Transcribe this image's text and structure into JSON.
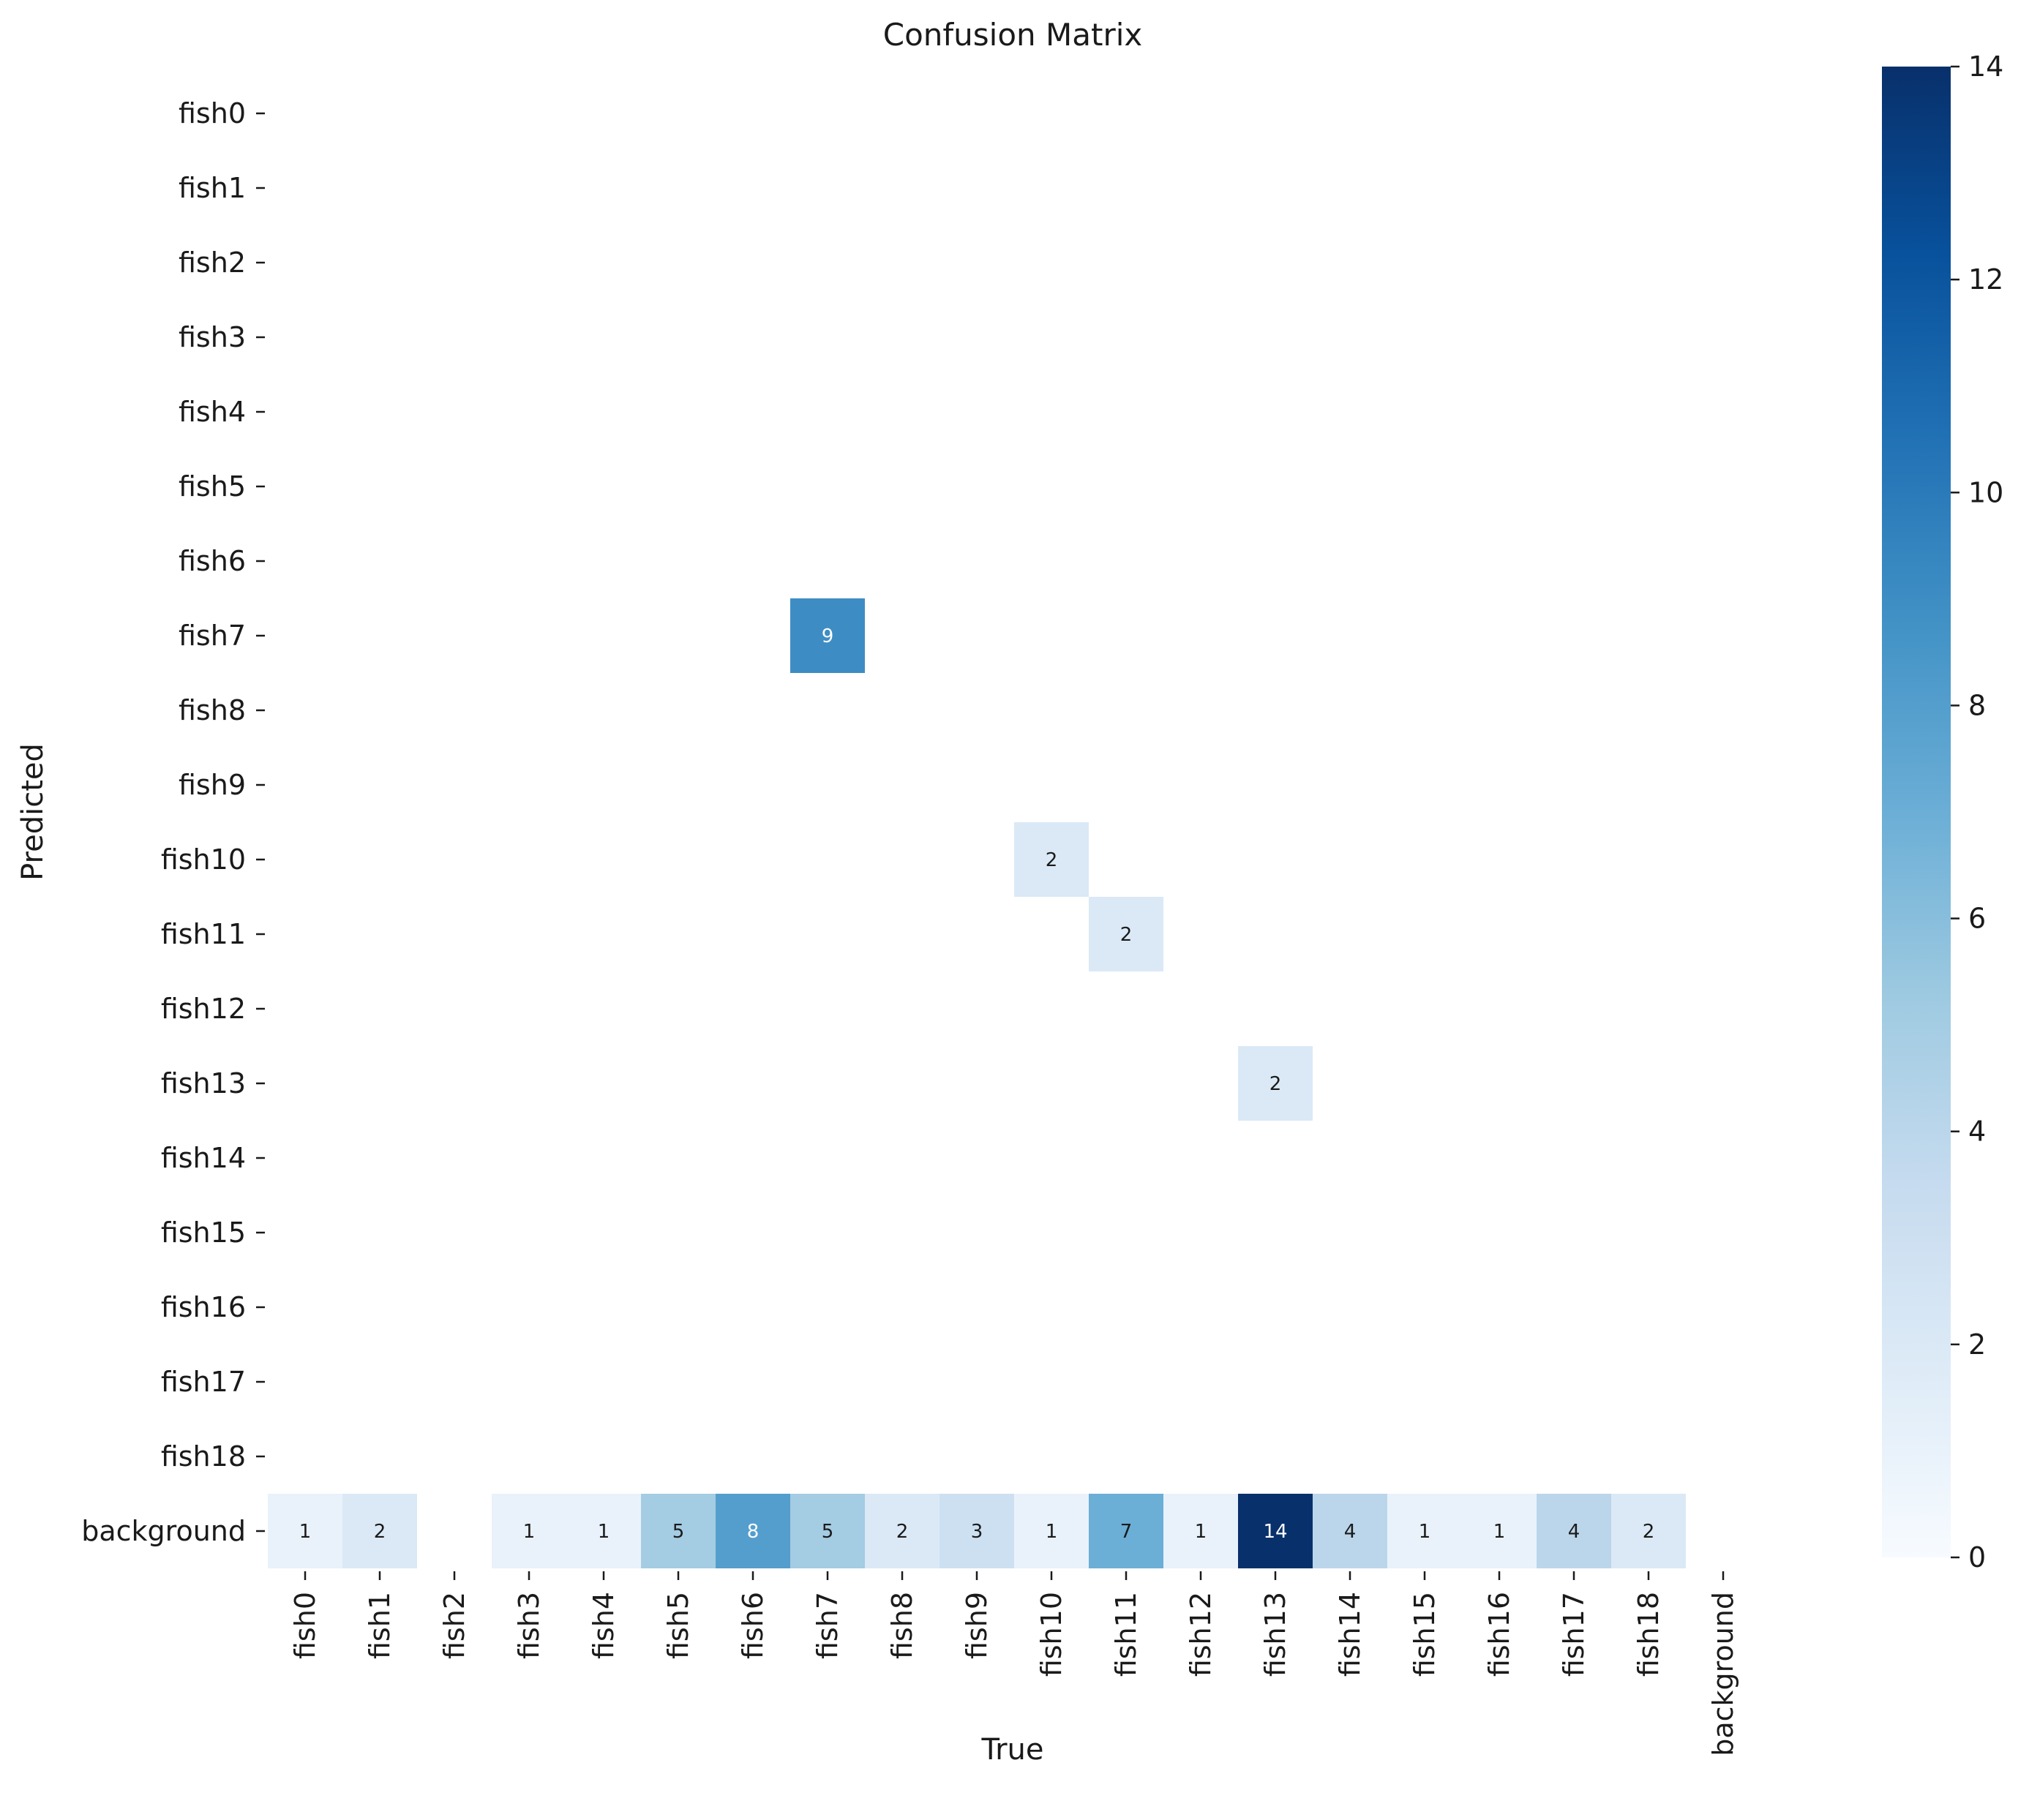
{
  "chart_data": {
    "type": "heatmap",
    "title": "Confusion Matrix",
    "xlabel": "True",
    "ylabel": "Predicted",
    "x_categories": [
      "fish0",
      "fish1",
      "fish2",
      "fish3",
      "fish4",
      "fish5",
      "fish6",
      "fish7",
      "fish8",
      "fish9",
      "fish10",
      "fish11",
      "fish12",
      "fish13",
      "fish14",
      "fish15",
      "fish16",
      "fish17",
      "fish18",
      "background"
    ],
    "y_categories": [
      "fish0",
      "fish1",
      "fish2",
      "fish3",
      "fish4",
      "fish5",
      "fish6",
      "fish7",
      "fish8",
      "fish9",
      "fish10",
      "fish11",
      "fish12",
      "fish13",
      "fish14",
      "fish15",
      "fish16",
      "fish17",
      "fish18",
      "background"
    ],
    "cells": [
      {
        "row": "fish7",
        "col": "fish7",
        "value": 9
      },
      {
        "row": "fish10",
        "col": "fish10",
        "value": 2
      },
      {
        "row": "fish11",
        "col": "fish11",
        "value": 2
      },
      {
        "row": "fish13",
        "col": "fish13",
        "value": 2
      },
      {
        "row": "background",
        "col": "fish0",
        "value": 1
      },
      {
        "row": "background",
        "col": "fish1",
        "value": 2
      },
      {
        "row": "background",
        "col": "fish3",
        "value": 1
      },
      {
        "row": "background",
        "col": "fish4",
        "value": 1
      },
      {
        "row": "background",
        "col": "fish5",
        "value": 5
      },
      {
        "row": "background",
        "col": "fish6",
        "value": 8
      },
      {
        "row": "background",
        "col": "fish7",
        "value": 5
      },
      {
        "row": "background",
        "col": "fish8",
        "value": 2
      },
      {
        "row": "background",
        "col": "fish9",
        "value": 3
      },
      {
        "row": "background",
        "col": "fish10",
        "value": 1
      },
      {
        "row": "background",
        "col": "fish11",
        "value": 7
      },
      {
        "row": "background",
        "col": "fish12",
        "value": 1
      },
      {
        "row": "background",
        "col": "fish13",
        "value": 14
      },
      {
        "row": "background",
        "col": "fish14",
        "value": 4
      },
      {
        "row": "background",
        "col": "fish15",
        "value": 1
      },
      {
        "row": "background",
        "col": "fish16",
        "value": 1
      },
      {
        "row": "background",
        "col": "fish17",
        "value": 4
      },
      {
        "row": "background",
        "col": "fish18",
        "value": 2
      }
    ],
    "empty_cells_shown": "blank (zero values not drawn)",
    "colorbar": {
      "range": [
        0,
        14
      ],
      "ticks": [
        0,
        2,
        4,
        6,
        8,
        10,
        12,
        14
      ],
      "colormap": "Blues",
      "color_low": "#f7fbff",
      "color_high": "#08306b"
    },
    "grid": false,
    "legend": "colorbar right"
  }
}
